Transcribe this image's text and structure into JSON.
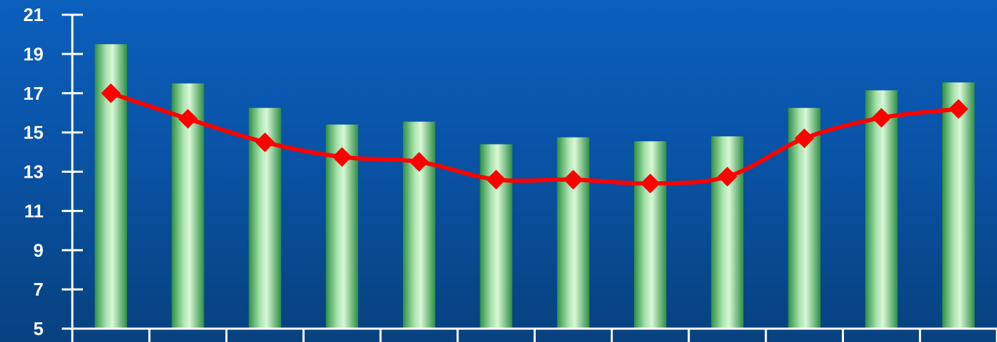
{
  "chart_data": {
    "type": "bar",
    "title": "",
    "xlabel": "",
    "ylabel": "",
    "ylim": [
      5,
      21
    ],
    "yticks": [
      "21",
      "19",
      "17",
      "15",
      "13",
      "11",
      "9",
      "7",
      "5"
    ],
    "categories": [
      "",
      "",
      "",
      "",
      "",
      "",
      "",
      "",
      "",
      "",
      "",
      ""
    ],
    "grid": false,
    "legend": "none",
    "series": [
      {
        "type": "bar",
        "values": [
          19.5,
          17.5,
          16.25,
          15.4,
          15.55,
          14.4,
          14.75,
          14.55,
          14.8,
          16.25,
          17.15,
          17.55
        ],
        "color": "#7fc98a"
      },
      {
        "type": "line",
        "marker": "diamond",
        "values": [
          17.0,
          15.7,
          14.5,
          13.75,
          13.5,
          12.6,
          12.6,
          12.4,
          12.75,
          14.7,
          15.75,
          16.2
        ],
        "color": "#ff0000"
      }
    ]
  }
}
